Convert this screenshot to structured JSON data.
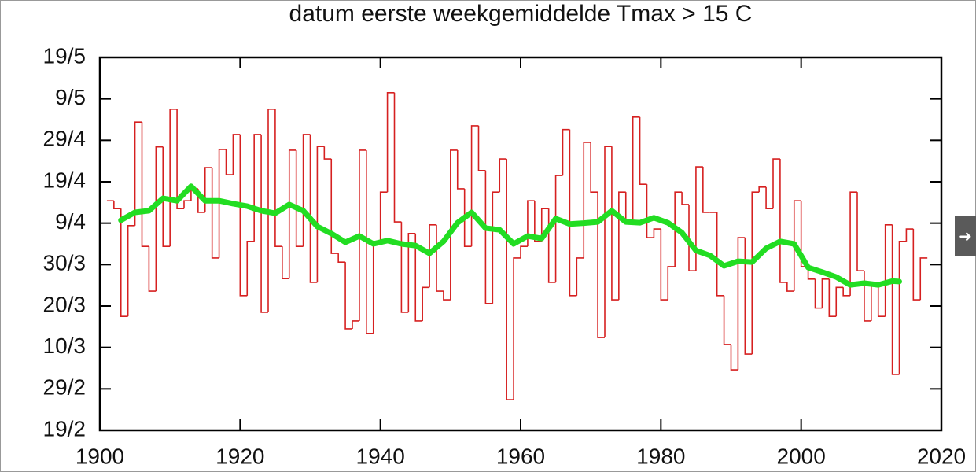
{
  "chart_data": {
    "type": "step-line",
    "title": "datum eerste weekgemiddelde Tmax > 15 C",
    "xlim": [
      1900,
      2020
    ],
    "xticks": [
      1900,
      1920,
      1940,
      1960,
      1980,
      2000,
      2020
    ],
    "ylim": [
      50,
      140
    ],
    "yticks": [
      {
        "value": 50,
        "label": "19/2"
      },
      {
        "value": 60,
        "label": "29/2"
      },
      {
        "value": 70,
        "label": "10/3"
      },
      {
        "value": 80,
        "label": "20/3"
      },
      {
        "value": 90,
        "label": "30/3"
      },
      {
        "value": 100,
        "label": "9/4"
      },
      {
        "value": 110,
        "label": "19/4"
      },
      {
        "value": 120,
        "label": "29/4"
      },
      {
        "value": 130,
        "label": "9/5"
      },
      {
        "value": 140,
        "label": "19/5"
      }
    ],
    "series": [
      {
        "color": "#d62020",
        "style": "steps",
        "x": [
          1901,
          1902,
          1903,
          1904,
          1905,
          1906,
          1907,
          1908,
          1909,
          1910,
          1911,
          1912,
          1913,
          1914,
          1915,
          1916,
          1917,
          1918,
          1919,
          1920,
          1921,
          1922,
          1923,
          1924,
          1925,
          1926,
          1927,
          1928,
          1929,
          1930,
          1931,
          1932,
          1933,
          1934,
          1935,
          1936,
          1937,
          1938,
          1939,
          1940,
          1941,
          1942,
          1943,
          1944,
          1945,
          1946,
          1947,
          1948,
          1949,
          1950,
          1951,
          1952,
          1953,
          1954,
          1955,
          1956,
          1957,
          1958,
          1959,
          1960,
          1961,
          1962,
          1963,
          1964,
          1965,
          1966,
          1967,
          1968,
          1969,
          1970,
          1971,
          1972,
          1973,
          1974,
          1975,
          1976,
          1977,
          1978,
          1979,
          1980,
          1981,
          1982,
          1983,
          1984,
          1985,
          1986,
          1987,
          1988,
          1989,
          1990,
          1991,
          1992,
          1993,
          1994,
          1995,
          1996,
          1997,
          1998,
          1999,
          2000,
          2001,
          2002,
          2003,
          2004,
          2005,
          2006,
          2007,
          2008,
          2009,
          2010,
          2011,
          2012,
          2013,
          2014,
          2015,
          2016,
          2017
        ],
        "values": [
          105.4,
          103.5,
          77.5,
          99.4,
          124.4,
          94.4,
          83.6,
          118.4,
          94.4,
          127.5,
          103.5,
          105.4,
          108.3,
          102.6,
          113.4,
          91.6,
          117.8,
          111.7,
          121.4,
          82.5,
          95.6,
          121.4,
          78.5,
          127.5,
          94.4,
          86.6,
          117.6,
          94.4,
          121.4,
          85.7,
          118.5,
          115.5,
          92.7,
          90.6,
          74.5,
          76.4,
          117.6,
          73.4,
          95.6,
          107.5,
          131.5,
          100.3,
          78.5,
          97.5,
          76.4,
          84.5,
          99.6,
          83.6,
          81.5,
          117.6,
          108.3,
          94.4,
          123.5,
          112.7,
          80.6,
          107.5,
          115.5,
          57.4,
          91.6,
          94.4,
          105.4,
          95.6,
          103.5,
          85.7,
          111.5,
          122.6,
          82.5,
          91.6,
          119.5,
          107.5,
          72.4,
          118.5,
          81.5,
          107.5,
          100.3,
          125.6,
          109.4,
          96.5,
          98.6,
          81.5,
          89.5,
          107.5,
          104.5,
          88.5,
          113.6,
          102.6,
          102.6,
          82.5,
          70.7,
          64.6,
          96.5,
          68.4,
          107.5,
          108.7,
          103.5,
          115.5,
          85.7,
          83.6,
          105.4,
          89.5,
          86.5,
          79.5,
          86.5,
          77.5,
          84.5,
          82.5,
          107.5,
          88.5,
          76.4,
          85.5,
          77.5,
          99.6,
          63.5,
          95.6,
          98.6,
          81.5,
          91.6
        ]
      },
      {
        "color": "#22dd22",
        "style": "line",
        "x": [
          1903,
          1905,
          1907,
          1909,
          1911,
          1913,
          1915,
          1917,
          1919,
          1921,
          1923,
          1925,
          1927,
          1929,
          1931,
          1933,
          1935,
          1937,
          1939,
          1941,
          1943,
          1945,
          1947,
          1949,
          1951,
          1953,
          1955,
          1957,
          1959,
          1961,
          1963,
          1965,
          1967,
          1969,
          1971,
          1973,
          1975,
          1977,
          1979,
          1981,
          1983,
          1985,
          1987,
          1989,
          1991,
          1993,
          1995,
          1997,
          1999,
          2001,
          2003,
          2005,
          2007,
          2009,
          2011,
          2013,
          2014
        ],
        "values": [
          100.7,
          102.6,
          103,
          106,
          105.4,
          108.9,
          105.4,
          105.4,
          104.7,
          104.1,
          103,
          102.4,
          104.5,
          103,
          99.2,
          97.5,
          95.4,
          96.9,
          95,
          95.8,
          95,
          94.6,
          92.7,
          95.6,
          100.1,
          102.6,
          98.8,
          98.4,
          95,
          96.9,
          96.3,
          101.1,
          99.8,
          100,
          100.3,
          103,
          100.3,
          100.1,
          101.3,
          100.1,
          97.7,
          93.4,
          92.2,
          89.7,
          90.8,
          90.6,
          93.9,
          95.6,
          95,
          89.3,
          88.2,
          87,
          85.1,
          85.5,
          85.1,
          86,
          85.9
        ]
      }
    ]
  }
}
